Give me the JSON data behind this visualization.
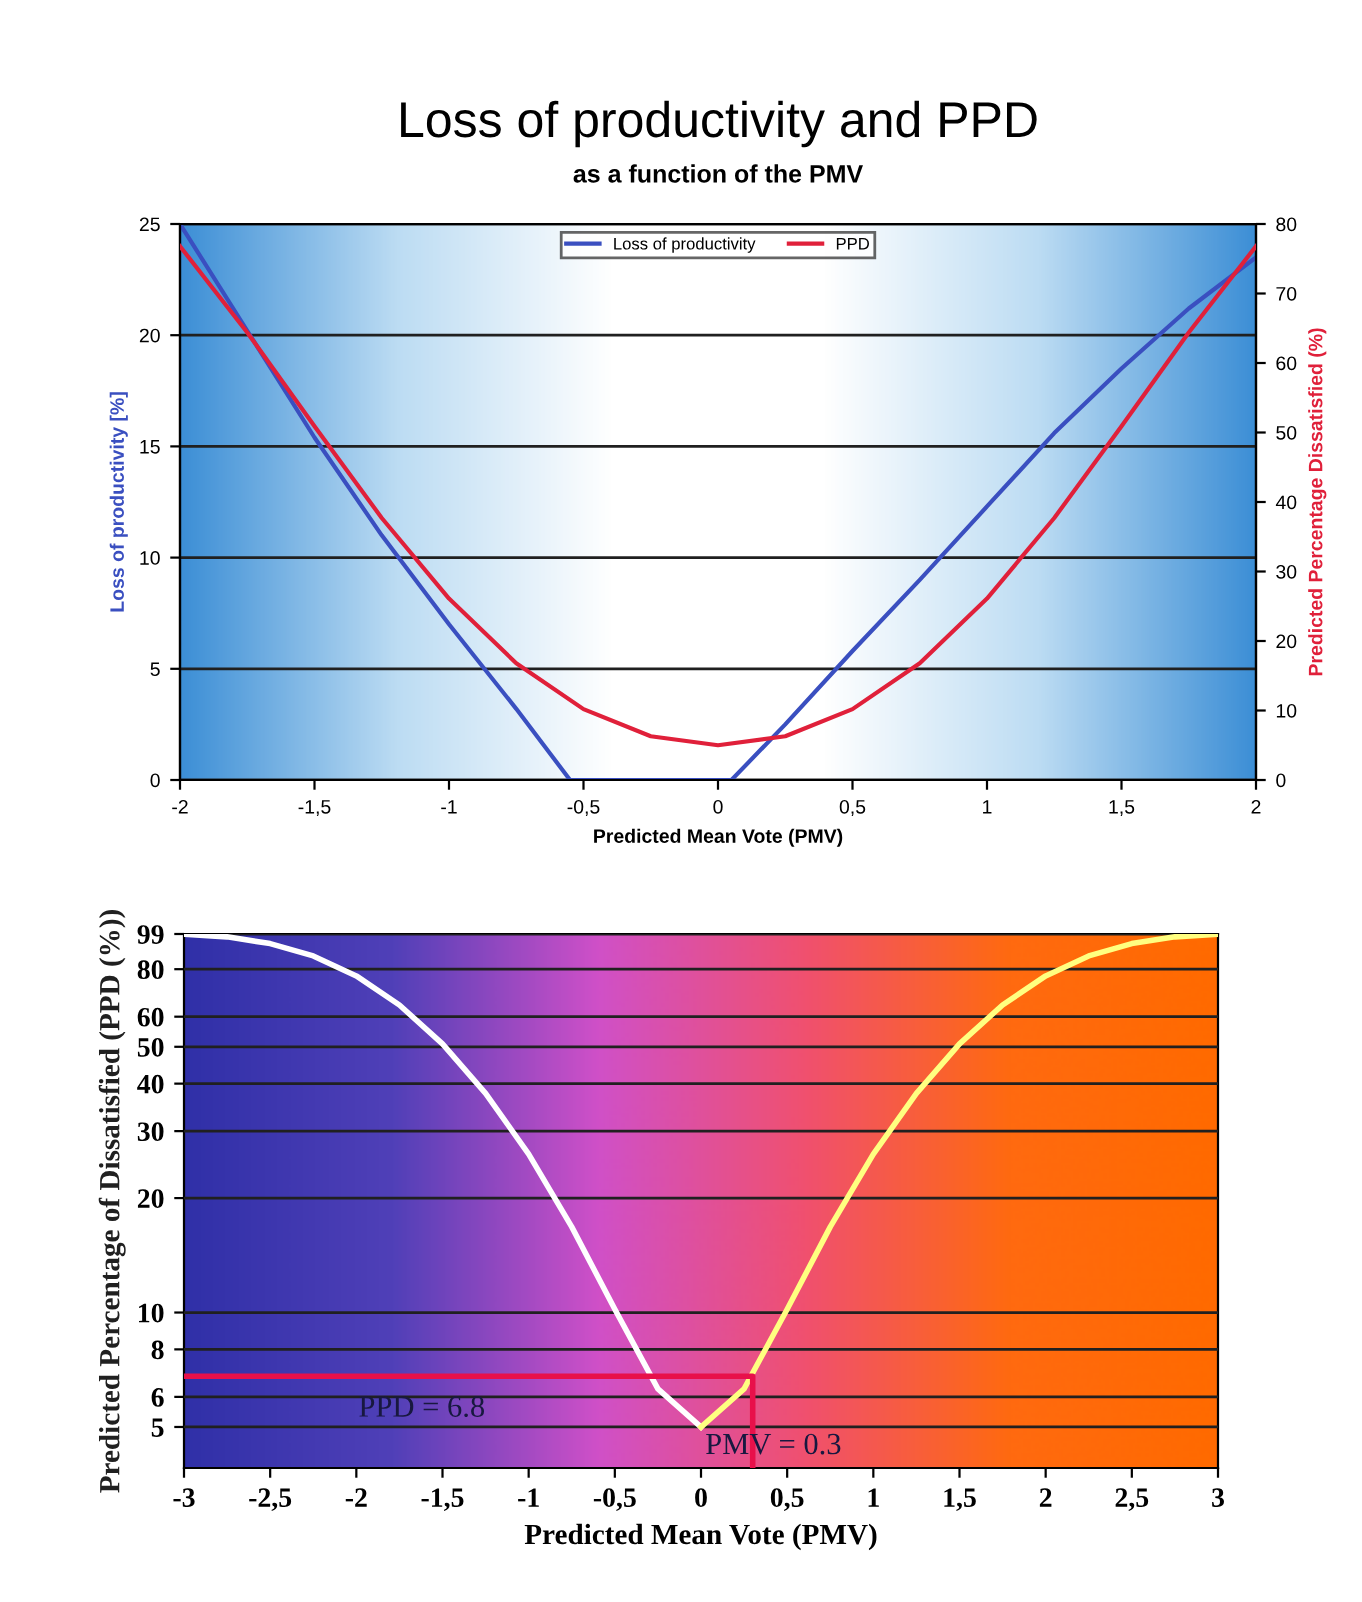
{
  "chart_data": [
    {
      "type": "line",
      "title": "Loss of productivity and PPD",
      "subtitle": "as a function of the PMV",
      "xlabel": "Predicted Mean Vote (PMV)",
      "ylabel": "Loss of productivity [%]",
      "y2label": "Predicted Percentage Dissatisfied (%)",
      "xlim": [
        -2,
        2
      ],
      "xticks": [
        -2,
        {
          "value": -1.5,
          "label": "-1,5"
        },
        -1,
        {
          "value": -0.5,
          "label": "-0,5"
        },
        0,
        {
          "value": 0.5,
          "label": "0,5"
        },
        1,
        {
          "value": 1.5,
          "label": "1,5"
        },
        2
      ],
      "ylim": [
        0,
        25
      ],
      "yticks": [
        0,
        5,
        10,
        15,
        20,
        25
      ],
      "y2lim": [
        0,
        80
      ],
      "y2ticks": [
        0,
        10,
        20,
        30,
        40,
        50,
        60,
        70,
        80
      ],
      "grid": "y",
      "legend": "top",
      "marker": "none",
      "line_style": "solid",
      "series": [
        {
          "name": "Loss of productivity",
          "color": "#3a4fc0",
          "x": [
            -2,
            -1.75,
            -1.5,
            -1.25,
            -1,
            -0.75,
            -0.55,
            0.05,
            0.25,
            0.5,
            0.75,
            1,
            1.25,
            1.5,
            1.75,
            2
          ],
          "values": [
            25,
            20.2,
            15.4,
            11,
            7,
            3.2,
            0,
            0,
            2.5,
            5.8,
            9,
            12.3,
            15.6,
            18.5,
            21.2,
            23.5
          ]
        },
        {
          "name": "PPD",
          "color": "#e0203a",
          "axis": "y2",
          "x": [
            -2,
            -1.75,
            -1.5,
            -1.25,
            -1,
            -0.75,
            -0.5,
            -0.25,
            0,
            0.25,
            0.5,
            0.75,
            1,
            1.25,
            1.5,
            1.75,
            2
          ],
          "values": [
            76.8,
            64.4,
            50.9,
            37.7,
            26.1,
            16.8,
            10.2,
            6.3,
            5,
            6.3,
            10.2,
            16.8,
            26.1,
            37.7,
            50.9,
            64.4,
            76.8
          ]
        }
      ]
    },
    {
      "type": "line",
      "xlabel": "Predicted Mean Vote (PMV)",
      "ylabel": "Predicted Percentage of Dissatisfied (PPD (%))",
      "xlim": [
        -3,
        3
      ],
      "xticks": [
        -3,
        {
          "value": -2.5,
          "label": "-2,5"
        },
        -2,
        {
          "value": -1.5,
          "label": "-1,5"
        },
        -1,
        {
          "value": -0.5,
          "label": "-0,5"
        },
        0,
        {
          "value": 0.5,
          "label": "0,5"
        },
        1,
        {
          "value": 1.5,
          "label": "1,5"
        },
        2,
        {
          "value": 2.5,
          "label": "2,5"
        },
        3
      ],
      "log": "y",
      "ylim": [
        3.9,
        99
      ],
      "yticks": [
        5,
        6,
        8,
        10,
        20,
        30,
        40,
        50,
        60,
        80,
        99
      ],
      "grid": "y",
      "marker": "none",
      "line_style": "solid",
      "series": [
        {
          "color": "#ffffff",
          "x": [
            -3,
            -2.75,
            -2.5,
            -2.25,
            -2,
            -1.75,
            -1.5,
            -1.25,
            -1,
            -0.75,
            -0.5,
            -0.25,
            0
          ],
          "values": [
            98.8,
            97.3,
            93.4,
            86.7,
            76.8,
            64.4,
            50.9,
            37.7,
            26.1,
            16.8,
            10.2,
            6.3,
            5
          ]
        },
        {
          "color": "#ffff80",
          "x": [
            0,
            0.25,
            0.5,
            0.75,
            1,
            1.25,
            1.5,
            1.75,
            2,
            2.25,
            2.5,
            2.75,
            3
          ],
          "values": [
            5,
            6.3,
            10.2,
            16.8,
            26.1,
            37.7,
            50.9,
            64.4,
            76.8,
            86.7,
            93.4,
            97.3,
            98.8
          ]
        },
        {
          "color": "#e8104a",
          "x": [
            -3,
            0.3,
            0.3
          ],
          "values": [
            6.8,
            6.8,
            3.9
          ]
        }
      ],
      "annotations": [
        "PPD = 6.8",
        "PMV = 0.3"
      ]
    }
  ]
}
